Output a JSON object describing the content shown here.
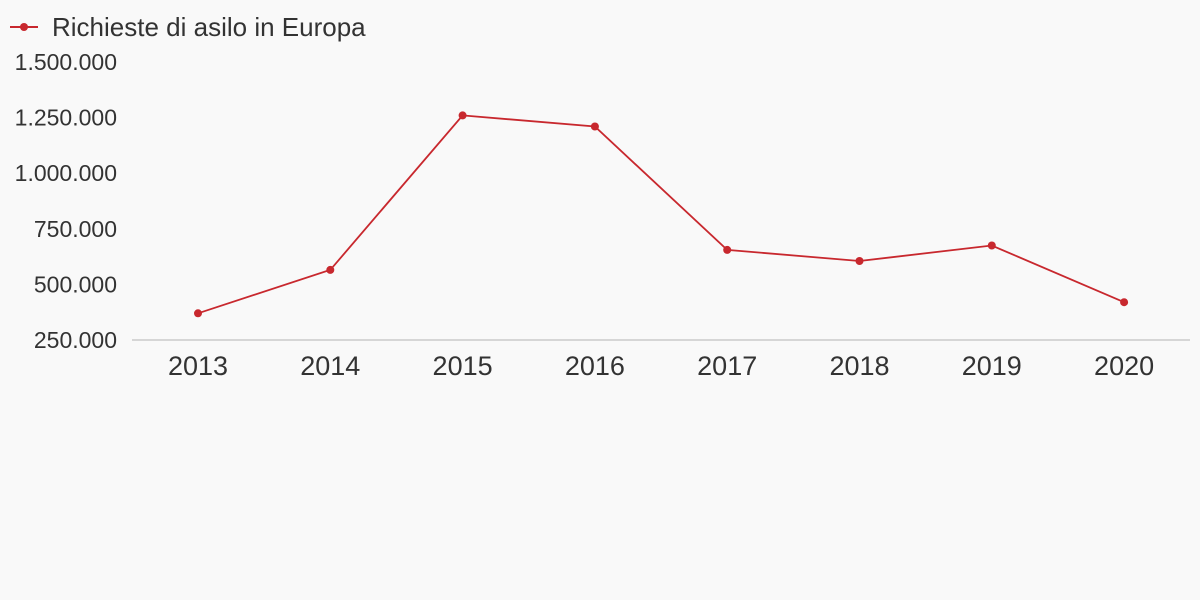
{
  "chart_data": {
    "type": "line",
    "categories": [
      "2013",
      "2014",
      "2015",
      "2016",
      "2017",
      "2018",
      "2019",
      "2020"
    ],
    "series": [
      {
        "name": "Richieste di asilo in Europa",
        "values": [
          370000,
          565000,
          1260000,
          1210000,
          655000,
          605000,
          675000,
          420000
        ],
        "color": "#c8282e"
      }
    ],
    "yticks": [
      "1.500.000",
      "1.250.000",
      "1.000.000",
      "750.000",
      "500.000",
      "250.000"
    ],
    "ytick_values": [
      1500000,
      1250000,
      1000000,
      750000,
      500000,
      250000
    ],
    "ylim": [
      250000,
      1500000
    ],
    "title": "",
    "xlabel": "",
    "ylabel": "",
    "legend_position": "top-left",
    "grid": false,
    "axis_color": "#d6d6d6",
    "background": "#f9f9f9"
  }
}
